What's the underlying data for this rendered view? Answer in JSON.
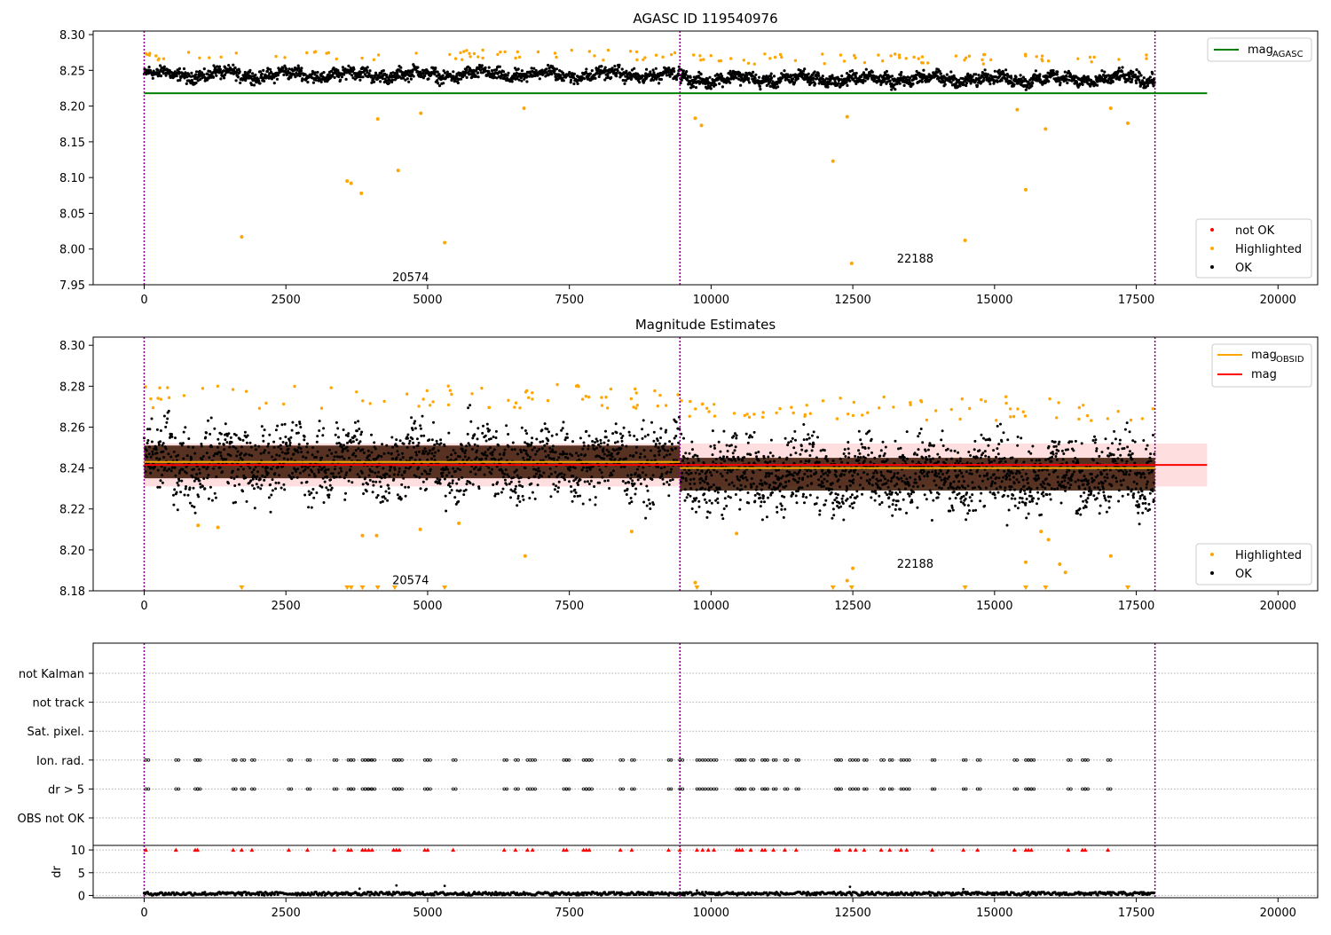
{
  "chart_data": [
    {
      "type": "scatter",
      "title": "AGASC ID 119540976",
      "xlim": [
        -900,
        20700
      ],
      "ylim": [
        7.95,
        8.305
      ],
      "xticks": [
        0,
        2500,
        5000,
        7500,
        10000,
        12500,
        15000,
        17500,
        20000
      ],
      "yticks": [
        7.95,
        8.0,
        8.05,
        8.1,
        8.15,
        8.2,
        8.25,
        8.3
      ],
      "ytick_labels": [
        "7.95",
        "8.00",
        "8.05",
        "8.10",
        "8.15",
        "8.20",
        "8.25",
        "8.30"
      ],
      "obs_boundaries": [
        0,
        9450,
        17830
      ],
      "obs_labels": [
        {
          "text": "20574",
          "x": 4700,
          "y": 7.96
        },
        {
          "text": "22188",
          "x": 13600,
          "y": 7.986
        }
      ],
      "mag_agasc": 8.218,
      "mag_agasc_xrange": [
        0,
        18750
      ],
      "ok_band": {
        "centers": [
          8.244,
          8.238
        ],
        "half_width": 0.018
      },
      "highlighted_points": [
        [
          1720,
          8.017
        ],
        [
          3580,
          8.095
        ],
        [
          3650,
          8.092
        ],
        [
          3830,
          8.078
        ],
        [
          4120,
          8.182
        ],
        [
          4480,
          8.11
        ],
        [
          4880,
          8.19
        ],
        [
          5300,
          8.009
        ],
        [
          6700,
          8.197
        ],
        [
          9720,
          8.183
        ],
        [
          9830,
          8.173
        ],
        [
          12150,
          8.123
        ],
        [
          12480,
          7.98
        ],
        [
          12400,
          8.185
        ],
        [
          14480,
          8.012
        ],
        [
          15550,
          8.083
        ],
        [
          15900,
          8.168
        ],
        [
          15400,
          8.195
        ],
        [
          17350,
          8.176
        ],
        [
          17050,
          8.197
        ]
      ],
      "legend_lines": [
        {
          "label": "mag",
          "sub": "AGASC",
          "color": "#008000"
        }
      ],
      "legend_points": [
        {
          "label": "not OK",
          "color": "#ff0000"
        },
        {
          "label": "Highlighted",
          "color": "#ffa500"
        },
        {
          "label": "OK",
          "color": "#000000"
        }
      ]
    },
    {
      "type": "scatter",
      "title": "Magnitude Estimates",
      "xlim": [
        -900,
        20700
      ],
      "ylim": [
        8.18,
        8.304
      ],
      "xticks": [
        0,
        2500,
        5000,
        7500,
        10000,
        12500,
        15000,
        17500,
        20000
      ],
      "yticks": [
        8.18,
        8.2,
        8.22,
        8.24,
        8.26,
        8.28,
        8.3
      ],
      "ytick_labels": [
        "8.18",
        "8.20",
        "8.22",
        "8.24",
        "8.26",
        "8.28",
        "8.30"
      ],
      "obs_boundaries": [
        0,
        9450,
        17830
      ],
      "obs_labels": [
        {
          "text": "20574",
          "x": 4700,
          "y": 8.185
        },
        {
          "text": "22188",
          "x": 13600,
          "y": 8.193
        }
      ],
      "mag_obsid_segments": [
        {
          "x0": 0,
          "x1": 9450,
          "y": 8.243
        },
        {
          "x0": 9450,
          "x1": 17830,
          "y": 8.24
        }
      ],
      "mag": 8.2415,
      "mag_xrange": [
        0,
        18750
      ],
      "mag_band": [
        8.231,
        8.252
      ],
      "ok_band": {
        "centers": [
          8.243,
          8.237
        ],
        "half_width": 0.026
      },
      "highlighted_points": [
        [
          950,
          8.212
        ],
        [
          1300,
          8.211
        ],
        [
          3850,
          8.207
        ],
        [
          4100,
          8.207
        ],
        [
          4870,
          8.21
        ],
        [
          5550,
          8.213
        ],
        [
          6720,
          8.197
        ],
        [
          8600,
          8.209
        ],
        [
          10450,
          8.208
        ],
        [
          12500,
          8.191
        ],
        [
          12400,
          8.185
        ],
        [
          15550,
          8.194
        ],
        [
          15820,
          8.209
        ],
        [
          15950,
          8.205
        ],
        [
          16150,
          8.193
        ],
        [
          16250,
          8.189
        ],
        [
          17050,
          8.197
        ],
        [
          9720,
          8.184
        ]
      ],
      "clipped_x": [
        1720,
        3580,
        3650,
        3850,
        4120,
        4420,
        5300,
        9750,
        12150,
        12480,
        14480,
        15550,
        15900,
        17350
      ],
      "legend_lines": [
        {
          "label": "mag",
          "sub": "OBSID",
          "color": "#ffa500"
        },
        {
          "label": "mag",
          "sub": "",
          "color": "#ff0000"
        }
      ],
      "legend_points": [
        {
          "label": "Highlighted",
          "color": "#ffa500"
        },
        {
          "label": "OK",
          "color": "#000000"
        }
      ]
    },
    {
      "type": "scatter",
      "title": "",
      "xlim": [
        -900,
        20700
      ],
      "flag_rows": [
        "not Kalman",
        "not track",
        "Sat. pixel.",
        "Ion. rad.",
        "dr > 5",
        "OBS not OK"
      ],
      "flag_x": [
        30,
        560,
        900,
        940,
        1570,
        1720,
        1900,
        2550,
        2880,
        3350,
        3600,
        3650,
        3850,
        3900,
        3960,
        4020,
        4400,
        4450,
        4500,
        4950,
        5000,
        5450,
        6350,
        6550,
        6760,
        6850,
        7400,
        7450,
        7750,
        7800,
        7850,
        8400,
        8600,
        9250,
        9450,
        9750,
        9850,
        9950,
        10050,
        10450,
        10500,
        10550,
        10700,
        10900,
        10950,
        11100,
        11300,
        11500,
        12200,
        12250,
        12450,
        12550,
        12700,
        13000,
        13150,
        13350,
        13450,
        13900,
        14450,
        14700,
        15350,
        15550,
        15600,
        15650,
        16300,
        16550,
        16600,
        17000
      ],
      "dr_ylim": [
        -0.5,
        11
      ],
      "dr_yticks": [
        0,
        5,
        10
      ],
      "dr_ylabel": "dr",
      "dr_clipped_value": 10,
      "dr_outliers": [
        [
          3800,
          1.5
        ],
        [
          4450,
          2.2
        ],
        [
          5300,
          2.1
        ],
        [
          12450,
          1.9
        ],
        [
          14450,
          1.4
        ],
        [
          9750,
          1.1
        ]
      ]
    }
  ],
  "colors": {
    "ok": "#000000",
    "highlighted": "#ffa500",
    "not_ok": "#ff0000",
    "boundary": "#800080",
    "agasc_line": "#008000",
    "ok_band_fill": "#3a1400",
    "mag_band_fill": "#ffc8cc"
  }
}
